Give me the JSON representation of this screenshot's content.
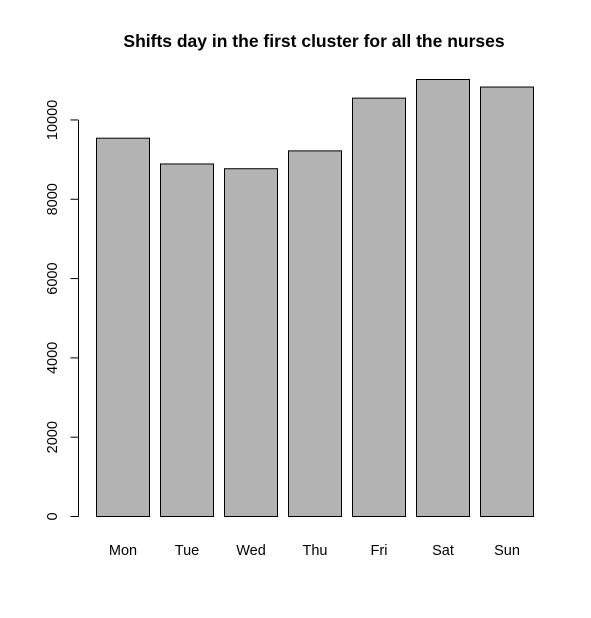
{
  "chart_data": {
    "type": "bar",
    "title": "Shifts day in the first cluster for all the nurses",
    "xlabel": "",
    "ylabel": "",
    "categories": [
      "Mon",
      "Tue",
      "Wed",
      "Thu",
      "Fri",
      "Sat",
      "Sun"
    ],
    "values": [
      9540,
      8890,
      8770,
      9220,
      10550,
      11020,
      10830
    ],
    "ylim": [
      0,
      11020
    ],
    "yticks": [
      0,
      2000,
      4000,
      6000,
      8000,
      10000
    ],
    "ytick_labels": [
      "0",
      "2000",
      "4000",
      "6000",
      "8000",
      "10000"
    ],
    "bar_fill": "#b3b3b3",
    "bar_stroke": "#000000",
    "grid": false,
    "legend": "none"
  }
}
